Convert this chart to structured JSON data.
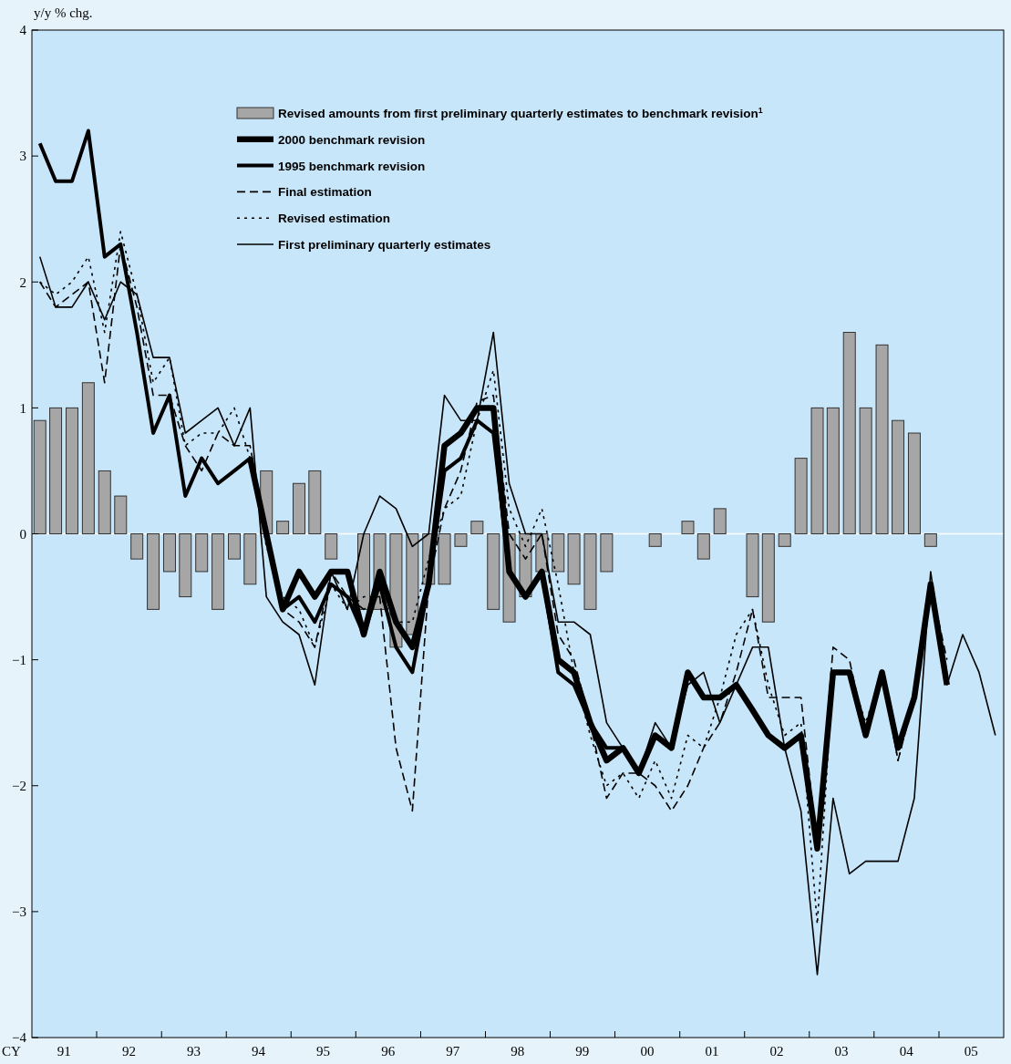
{
  "chart_data": {
    "type": "line",
    "ylabel": "y/y % chg.",
    "xlabel": "CY",
    "x": [
      "1991-02-15",
      "1991-05-15",
      "1991-08-15",
      "1991-11-15",
      "1992-02-15",
      "1992-05-15",
      "1992-08-15",
      "1992-11-15",
      "1993-02-15",
      "1993-05-15",
      "1993-08-15",
      "1993-11-15",
      "1994-02-15",
      "1994-05-15",
      "1994-08-15",
      "1994-11-15",
      "1995-02-15",
      "1995-05-15",
      "1995-08-15",
      "1995-11-15",
      "1996-02-15",
      "1996-05-15",
      "1996-08-15",
      "1996-11-15",
      "1997-02-15",
      "1997-05-15",
      "1997-08-15",
      "1997-11-15",
      "1998-02-15",
      "1998-05-15",
      "1998-08-15",
      "1998-11-15",
      "1999-02-15",
      "1999-05-15",
      "1999-08-15",
      "1999-11-15",
      "2000-02-15",
      "2000-05-15",
      "2000-08-15",
      "2000-11-15",
      "2001-02-15",
      "2001-05-15",
      "2001-08-15",
      "2001-11-15",
      "2002-02-15",
      "2002-05-15",
      "2002-08-15",
      "2002-11-15",
      "2003-02-15",
      "2003-05-15",
      "2003-08-15",
      "2003-11-15",
      "2004-02-15",
      "2004-05-15",
      "2004-08-15",
      "2004-11-15",
      "2005-02-15",
      "2005-05-15",
      "2005-08-15",
      "2005-11-15"
    ],
    "xlim": [
      "1991-01-01",
      "2006-01-01"
    ],
    "xticks": [
      {
        "value": "1991-07-01",
        "label": "91"
      },
      {
        "value": "1992-01-01",
        "label": null
      },
      {
        "value": "1992-07-01",
        "label": "92"
      },
      {
        "value": "1993-01-01",
        "label": null
      },
      {
        "value": "1993-07-01",
        "label": "93"
      },
      {
        "value": "1994-01-01",
        "label": null
      },
      {
        "value": "1994-07-01",
        "label": "94"
      },
      {
        "value": "1995-01-01",
        "label": null
      },
      {
        "value": "1995-07-01",
        "label": "95"
      },
      {
        "value": "1996-01-01",
        "label": null
      },
      {
        "value": "1996-07-01",
        "label": "96"
      },
      {
        "value": "1997-01-01",
        "label": null
      },
      {
        "value": "1997-07-01",
        "label": "97"
      },
      {
        "value": "1998-01-01",
        "label": null
      },
      {
        "value": "1998-07-01",
        "label": "98"
      },
      {
        "value": "1999-01-01",
        "label": null
      },
      {
        "value": "1999-07-01",
        "label": "99"
      },
      {
        "value": "2000-01-01",
        "label": null
      },
      {
        "value": "2000-07-01",
        "label": "00"
      },
      {
        "value": "2001-01-01",
        "label": null
      },
      {
        "value": "2001-07-01",
        "label": "01"
      },
      {
        "value": "2002-01-01",
        "label": null
      },
      {
        "value": "2002-07-01",
        "label": "02"
      },
      {
        "value": "2003-01-01",
        "label": null
      },
      {
        "value": "2003-07-01",
        "label": "03"
      },
      {
        "value": "2004-01-01",
        "label": null
      },
      {
        "value": "2004-07-01",
        "label": "04"
      },
      {
        "value": "2005-01-01",
        "label": null
      },
      {
        "value": "2005-07-01",
        "label": "05"
      }
    ],
    "ylim": [
      -4,
      4
    ],
    "yticks": [
      {
        "value": -4,
        "label": "−4"
      },
      {
        "value": -3,
        "label": "−3"
      },
      {
        "value": -2,
        "label": "−2"
      },
      {
        "value": -1,
        "label": "−1"
      },
      0,
      1,
      2,
      3,
      4
    ],
    "legend": "top left",
    "ref_lines": [
      {
        "axis": "y",
        "value": 0,
        "color": "#ffffff"
      }
    ],
    "series": [
      {
        "name": "Revised amounts from first preliminary quarterly estimates to benchmark revision$^{1}$",
        "type": "bar",
        "color": "#a6a6a6",
        "values": [
          0.9,
          1.0,
          1.0,
          1.2,
          0.5,
          0.3,
          -0.2,
          -0.6,
          -0.3,
          -0.5,
          -0.3,
          -0.6,
          -0.2,
          -0.4,
          0.5,
          0.1,
          0.4,
          0.5,
          -0.2,
          null,
          -0.6,
          -0.6,
          -0.9,
          -0.8,
          -0.4,
          -0.4,
          -0.1,
          0.1,
          -0.6,
          -0.7,
          -0.5,
          -0.3,
          -0.3,
          -0.4,
          -0.6,
          -0.3,
          null,
          null,
          -0.1,
          null,
          0.1,
          -0.2,
          0.2,
          null,
          -0.5,
          -0.7,
          -0.1,
          0.6,
          1.0,
          1.0,
          1.6,
          1.0,
          1.5,
          0.9,
          0.8,
          -0.1,
          null,
          null,
          null,
          null
        ]
      },
      {
        "name": "2000 benchmark revision",
        "color": "#000000",
        "line_style": "solid",
        "values": [
          null,
          null,
          null,
          null,
          null,
          null,
          null,
          null,
          null,
          null,
          null,
          null,
          null,
          0.6,
          0.0,
          -0.6,
          -0.3,
          -0.5,
          -0.3,
          -0.3,
          -0.8,
          -0.3,
          -0.7,
          -0.9,
          -0.4,
          0.7,
          0.8,
          1.0,
          1.0,
          -0.3,
          -0.5,
          -0.3,
          -1.0,
          -1.1,
          -1.5,
          -1.8,
          -1.7,
          -1.9,
          -1.6,
          -1.7,
          -1.1,
          -1.3,
          -1.3,
          -1.2,
          -1.4,
          -1.6,
          -1.7,
          -1.6,
          -2.5,
          -1.1,
          -1.1,
          -1.6,
          -1.1,
          -1.7,
          -1.3,
          -0.4,
          -1.2,
          null,
          null,
          null
        ]
      },
      {
        "name": "1995 benchmark revision",
        "color": "#000000",
        "line_style": "solid",
        "values": [
          3.1,
          2.8,
          2.8,
          3.2,
          2.2,
          2.3,
          1.6,
          0.8,
          1.1,
          0.3,
          0.6,
          0.4,
          0.5,
          0.6,
          0.0,
          -0.6,
          -0.5,
          -0.7,
          -0.4,
          -0.5,
          -0.8,
          -0.4,
          -0.9,
          -1.1,
          -0.4,
          0.5,
          0.6,
          0.9,
          0.8,
          -0.3,
          -0.5,
          -0.3,
          -1.1,
          -1.2,
          -1.5,
          -1.7,
          -1.7,
          -1.9,
          -1.6,
          -1.7,
          null,
          null,
          null,
          null,
          null,
          null,
          null,
          null,
          null,
          null,
          null,
          null,
          null,
          null,
          null,
          null,
          null,
          null,
          null,
          null
        ]
      },
      {
        "name": "Final estimation",
        "color": "#000000",
        "line_style": "dashed",
        "values": [
          2.0,
          1.8,
          1.9,
          2.0,
          1.2,
          2.3,
          1.8,
          1.1,
          1.1,
          0.7,
          0.5,
          0.8,
          0.7,
          0.7,
          0.0,
          -0.6,
          -0.7,
          -0.9,
          -0.3,
          -0.5,
          -0.6,
          -0.5,
          -1.7,
          -2.2,
          -0.4,
          0.2,
          0.5,
          1.05,
          1.1,
          0.0,
          -0.2,
          0.0,
          -0.8,
          -1.0,
          -1.5,
          -2.1,
          -1.9,
          -1.9,
          -2.0,
          -2.2,
          -2.0,
          -1.7,
          -1.5,
          -1.1,
          -0.6,
          -1.3,
          -1.3,
          -1.3,
          -2.5,
          -0.9,
          -1.0,
          -1.6,
          -1.1,
          -1.8,
          -1.3,
          -0.4,
          -1.0,
          null,
          null,
          null
        ]
      },
      {
        "name": "Revised estimation",
        "color": "#000000",
        "line_style": "dotted",
        "values": [
          2.0,
          1.9,
          2.0,
          2.2,
          1.6,
          2.4,
          1.9,
          1.2,
          1.4,
          0.7,
          0.8,
          0.8,
          1.0,
          0.6,
          -0.1,
          -0.5,
          -0.6,
          -0.9,
          -0.4,
          -0.6,
          -0.5,
          -0.5,
          -0.7,
          -0.7,
          -0.2,
          0.2,
          0.3,
          0.9,
          1.3,
          0.2,
          -0.1,
          0.2,
          -0.4,
          -1.1,
          -1.6,
          -2.0,
          -1.9,
          -2.1,
          -1.8,
          -2.1,
          -1.6,
          -1.7,
          -1.3,
          -0.8,
          -0.6,
          -1.2,
          -1.6,
          -1.5,
          -3.1,
          -1.1,
          -1.1,
          -1.5,
          -1.1,
          -1.8,
          -1.3,
          -0.4,
          -1.1,
          null,
          null,
          null
        ]
      },
      {
        "name": "First preliminary quarterly estimates",
        "color": "#000000",
        "line_style": "solid",
        "values": [
          2.2,
          1.8,
          1.8,
          2.0,
          1.7,
          2.0,
          1.9,
          1.4,
          1.4,
          0.8,
          0.9,
          1.0,
          0.7,
          1.0,
          -0.5,
          -0.7,
          -0.8,
          -1.2,
          -0.3,
          -0.6,
          0.0,
          0.3,
          0.2,
          -0.1,
          0.0,
          1.1,
          0.9,
          0.9,
          1.6,
          0.4,
          0.0,
          0.0,
          -0.7,
          -0.7,
          -0.8,
          -1.5,
          -1.7,
          -1.9,
          -1.5,
          -1.7,
          -1.2,
          -1.1,
          -1.5,
          -1.2,
          -0.9,
          -0.9,
          -1.7,
          -2.2,
          -3.5,
          -2.1,
          -2.7,
          -2.6,
          -2.6,
          -2.6,
          -2.1,
          -0.3,
          -1.2,
          -0.8,
          -1.1,
          -1.6
        ]
      }
    ]
  }
}
